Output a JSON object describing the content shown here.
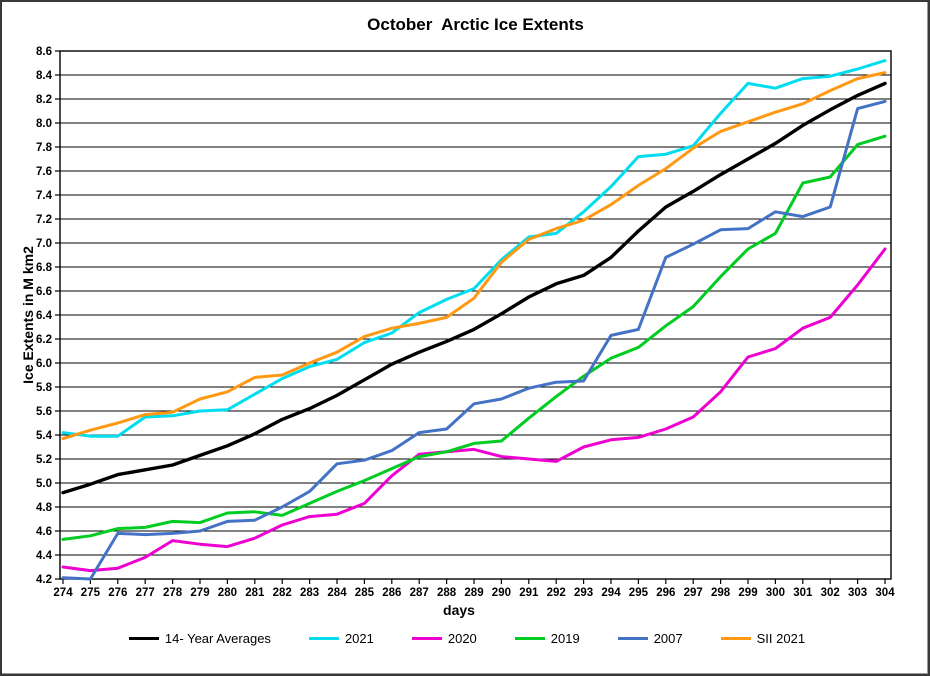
{
  "chart_data": {
    "type": "line",
    "title": "October  Arctic Ice Extents",
    "xlabel": "days",
    "ylabel": "Ice Extents in M km2",
    "x": [
      274,
      275,
      276,
      277,
      278,
      279,
      280,
      281,
      282,
      283,
      284,
      285,
      286,
      287,
      288,
      289,
      290,
      291,
      292,
      293,
      294,
      295,
      296,
      297,
      298,
      299,
      300,
      301,
      302,
      303,
      304
    ],
    "ylim": [
      4.2,
      8.6
    ],
    "y_tick_step": 0.2,
    "grid": "horizontal-only",
    "legend_position": "bottom",
    "series": [
      {
        "name": "14- Year Averages",
        "color": "#000000",
        "values": [
          4.92,
          4.99,
          5.07,
          5.11,
          5.15,
          5.23,
          5.31,
          5.41,
          5.53,
          5.62,
          5.73,
          5.86,
          5.99,
          6.09,
          6.18,
          6.28,
          6.41,
          6.55,
          6.66,
          6.73,
          6.88,
          7.1,
          7.3,
          7.43,
          7.57,
          7.7,
          7.83,
          7.98,
          8.11,
          8.23,
          8.33
        ]
      },
      {
        "name": "2021",
        "color": "#00DDEE",
        "values": [
          5.42,
          5.39,
          5.39,
          5.55,
          5.56,
          5.6,
          5.61,
          5.74,
          5.87,
          5.97,
          6.03,
          6.17,
          6.25,
          6.42,
          6.53,
          6.62,
          6.86,
          7.05,
          7.08,
          7.26,
          7.47,
          7.72,
          7.74,
          7.81,
          8.08,
          8.33,
          8.29,
          8.37,
          8.39,
          8.45,
          8.52
        ]
      },
      {
        "name": "2020",
        "color": "#EE00D0",
        "values": [
          4.3,
          4.27,
          4.29,
          4.38,
          4.52,
          4.49,
          4.47,
          4.54,
          4.65,
          4.72,
          4.74,
          4.83,
          5.06,
          5.24,
          5.26,
          5.28,
          5.22,
          5.2,
          5.18,
          5.3,
          5.36,
          5.38,
          5.45,
          5.55,
          5.76,
          6.05,
          6.12,
          6.29,
          6.38,
          6.65,
          6.95
        ]
      },
      {
        "name": "2019",
        "color": "#00CC22",
        "values": [
          4.53,
          4.56,
          4.62,
          4.63,
          4.68,
          4.67,
          4.75,
          4.76,
          4.73,
          4.83,
          4.93,
          5.02,
          5.12,
          5.22,
          5.26,
          5.33,
          5.35,
          5.54,
          5.72,
          5.89,
          6.04,
          6.13,
          6.31,
          6.47,
          6.72,
          6.95,
          7.08,
          7.5,
          7.55,
          7.82,
          7.89
        ]
      },
      {
        "name": "2007",
        "color": "#4472C4",
        "values": [
          4.21,
          4.2,
          4.58,
          4.57,
          4.58,
          4.6,
          4.68,
          4.69,
          4.8,
          4.93,
          5.16,
          5.19,
          5.27,
          5.42,
          5.45,
          5.66,
          5.7,
          5.79,
          5.84,
          5.85,
          6.23,
          6.28,
          6.88,
          6.99,
          7.11,
          7.12,
          7.26,
          7.22,
          7.3,
          8.12,
          8.18
        ]
      },
      {
        "name": "SII 2021",
        "color": "#FF9913",
        "values": [
          5.37,
          5.44,
          5.5,
          5.57,
          5.59,
          5.7,
          5.76,
          5.88,
          5.9,
          6.0,
          6.09,
          6.22,
          6.29,
          6.33,
          6.38,
          6.54,
          6.84,
          7.03,
          7.12,
          7.19,
          7.32,
          7.48,
          7.62,
          7.79,
          7.93,
          8.01,
          8.09,
          8.16,
          8.27,
          8.37,
          8.42
        ]
      }
    ]
  }
}
